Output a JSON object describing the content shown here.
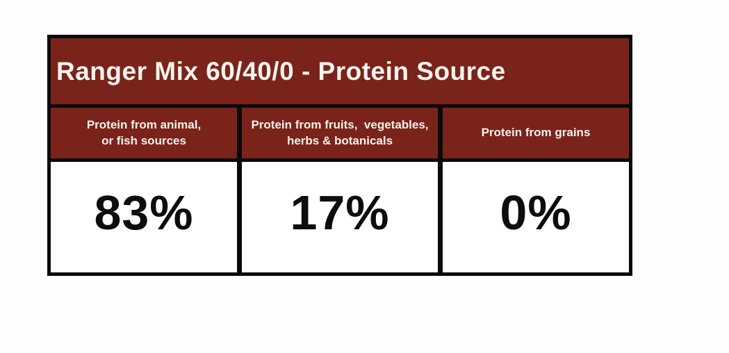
{
  "table": {
    "title": "Ranger Mix 60/40/0 - Protein Source",
    "columns": [
      {
        "header_line1": "Protein from animal,",
        "header_line2": "or fish sources",
        "value": "83%"
      },
      {
        "header_line1": "Protein from fruits,  vegetables,",
        "header_line2": "herbs & botanicals",
        "value": "17%"
      },
      {
        "header_line1": "Protein from grains",
        "header_line2": "",
        "value": "0%"
      }
    ]
  },
  "colors": {
    "header_red": "#7a231b",
    "border_black": "#0a0a0a",
    "header_text": "#f7f3ec",
    "value_text": "#0d0d0d",
    "background": "#ffffff"
  },
  "chart_data": {
    "type": "table",
    "title": "Ranger Mix 60/40/0 - Protein Source",
    "categories": [
      "Protein from animal, or fish sources",
      "Protein from fruits, vegetables, herbs & botanicals",
      "Protein from grains"
    ],
    "values": [
      83,
      17,
      0
    ],
    "unit": "%"
  }
}
